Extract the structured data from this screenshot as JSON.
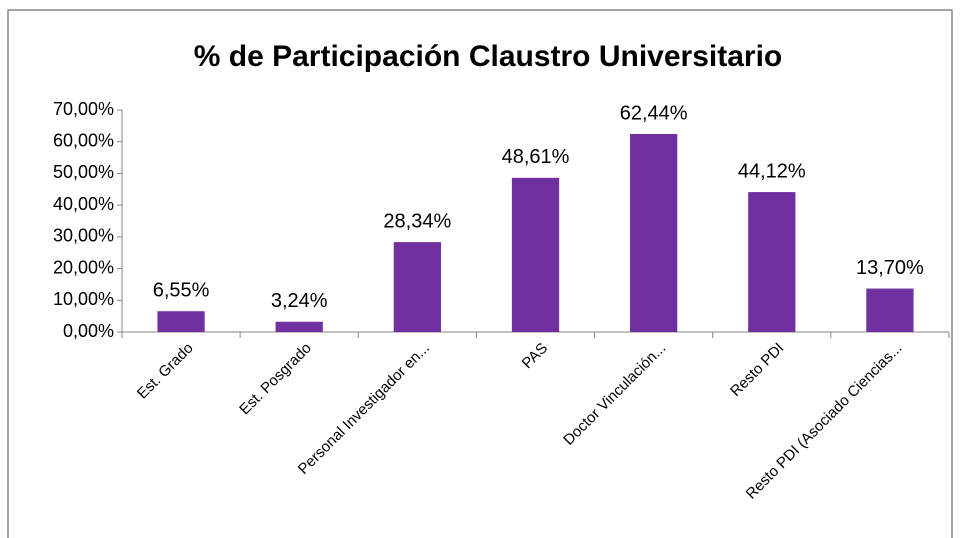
{
  "chart_data": {
    "type": "bar",
    "title": "% de Participación Claustro Universitario",
    "categories": [
      "Est. Grado",
      "Est. Posgrado",
      "Personal Investigador en...",
      "PAS",
      "Doctor Vinculación...",
      "Resto PDI",
      "Resto PDI (Asociado Ciencias..."
    ],
    "values": [
      6.55,
      3.24,
      28.34,
      48.61,
      62.44,
      44.12,
      13.7
    ],
    "value_labels": [
      "6,55%",
      "3,24%",
      "28,34%",
      "48,61%",
      "62,44%",
      "44,12%",
      "13,70%"
    ],
    "color": "#7030a0",
    "ylim": [
      0,
      70
    ],
    "yticks": [
      {
        "value": 0,
        "label": "0,00%"
      },
      {
        "value": 10,
        "label": "10,00%"
      },
      {
        "value": 20,
        "label": "20,00%"
      },
      {
        "value": 30,
        "label": "30,00%"
      },
      {
        "value": 40,
        "label": "40,00%"
      },
      {
        "value": 50,
        "label": "50,00%"
      },
      {
        "value": 60,
        "label": "60,00%"
      },
      {
        "value": 70,
        "label": "70,00%"
      }
    ],
    "grid": false
  }
}
